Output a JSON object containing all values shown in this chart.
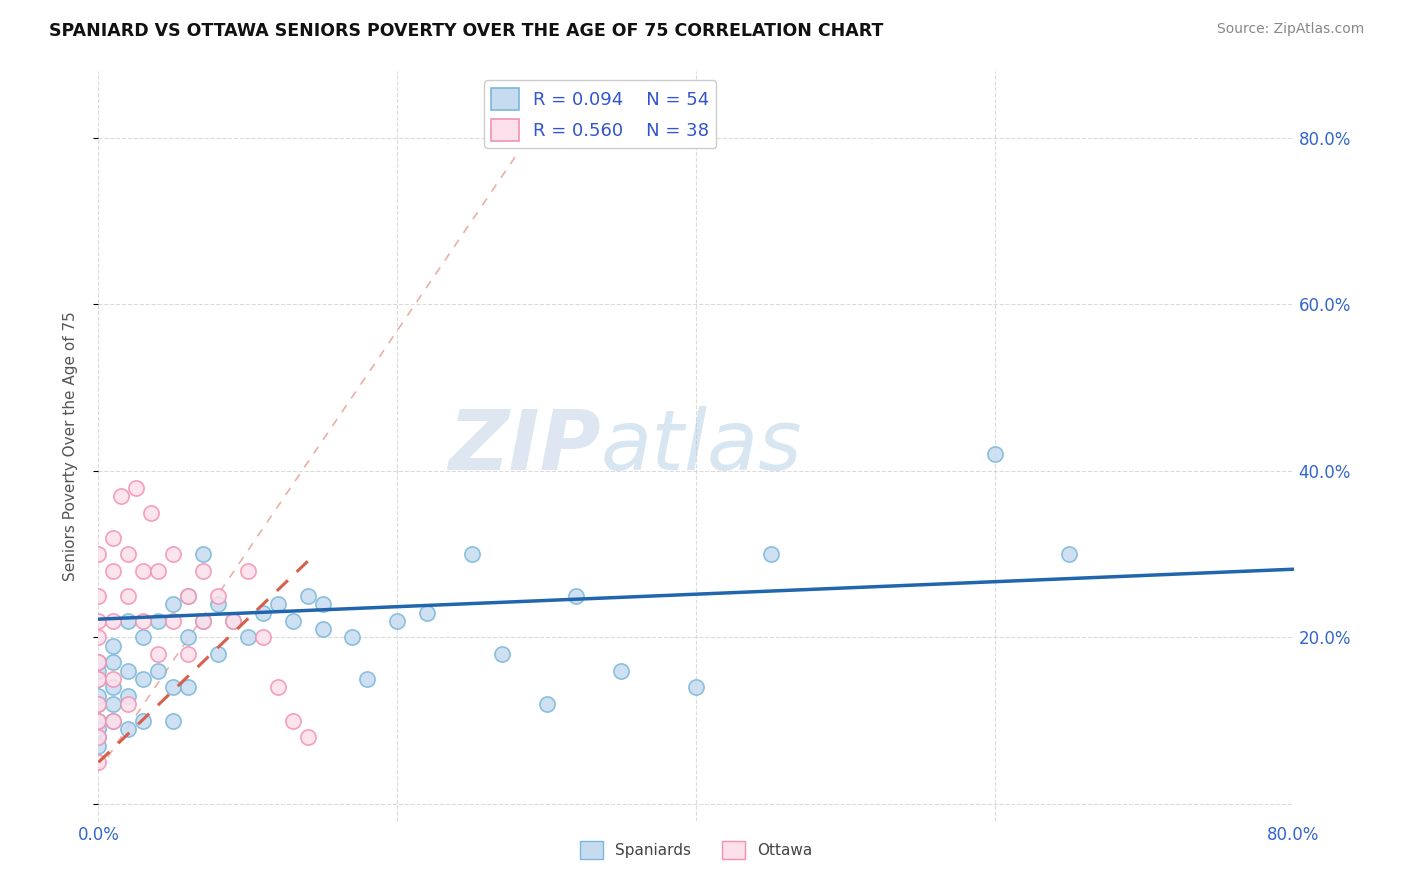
{
  "title": "SPANIARD VS OTTAWA SENIORS POVERTY OVER THE AGE OF 75 CORRELATION CHART",
  "source": "Source: ZipAtlas.com",
  "xlabel_spaniards": "Spaniards",
  "xlabel_ottawa": "Ottawa",
  "ylabel": "Seniors Poverty Over the Age of 75",
  "xlim": [
    0.0,
    0.8
  ],
  "ylim": [
    -0.02,
    0.88
  ],
  "x_ticks": [
    0.0,
    0.2,
    0.4,
    0.6,
    0.8
  ],
  "x_tick_labels": [
    "0.0%",
    "",
    "",
    "",
    "80.0%"
  ],
  "y_ticks": [
    0.0,
    0.2,
    0.4,
    0.6,
    0.8
  ],
  "y_tick_labels_right": [
    "",
    "20.0%",
    "40.0%",
    "60.0%",
    "80.0%"
  ],
  "r_spaniards": 0.094,
  "n_spaniards": 54,
  "r_ottawa": 0.56,
  "n_ottawa": 38,
  "spaniards_color": "#7ab8d9",
  "ottawa_color": "#f490b0",
  "spaniards_fill": "#c6dbef",
  "ottawa_fill": "#fce0ec",
  "trend_spaniards_color": "#2166ac",
  "trend_ottawa_color": "#d6604d",
  "watermark_zip": "ZIP",
  "watermark_atlas": "atlas",
  "spaniards_x": [
    0.0,
    0.0,
    0.0,
    0.0,
    0.0,
    0.0,
    0.0,
    0.0,
    0.0,
    0.01,
    0.01,
    0.01,
    0.01,
    0.01,
    0.02,
    0.02,
    0.02,
    0.02,
    0.03,
    0.03,
    0.03,
    0.04,
    0.04,
    0.05,
    0.05,
    0.05,
    0.06,
    0.06,
    0.06,
    0.07,
    0.07,
    0.08,
    0.08,
    0.09,
    0.1,
    0.11,
    0.12,
    0.13,
    0.14,
    0.15,
    0.15,
    0.17,
    0.18,
    0.2,
    0.22,
    0.25,
    0.27,
    0.3,
    0.32,
    0.35,
    0.4,
    0.45,
    0.6,
    0.65
  ],
  "spaniards_y": [
    0.08,
    0.1,
    0.12,
    0.13,
    0.15,
    0.16,
    0.17,
    0.09,
    0.07,
    0.12,
    0.14,
    0.17,
    0.19,
    0.1,
    0.13,
    0.16,
    0.22,
    0.09,
    0.15,
    0.2,
    0.1,
    0.16,
    0.22,
    0.14,
    0.24,
    0.1,
    0.2,
    0.25,
    0.14,
    0.22,
    0.3,
    0.24,
    0.18,
    0.22,
    0.2,
    0.23,
    0.24,
    0.22,
    0.25,
    0.24,
    0.21,
    0.2,
    0.15,
    0.22,
    0.23,
    0.3,
    0.18,
    0.12,
    0.25,
    0.16,
    0.14,
    0.3,
    0.42,
    0.3
  ],
  "ottawa_x": [
    0.0,
    0.0,
    0.0,
    0.0,
    0.0,
    0.0,
    0.0,
    0.0,
    0.0,
    0.0,
    0.01,
    0.01,
    0.01,
    0.01,
    0.01,
    0.02,
    0.02,
    0.02,
    0.03,
    0.03,
    0.04,
    0.04,
    0.05,
    0.05,
    0.06,
    0.06,
    0.07,
    0.07,
    0.08,
    0.09,
    0.1,
    0.11,
    0.12,
    0.13,
    0.14,
    0.015,
    0.025,
    0.035
  ],
  "ottawa_y": [
    0.08,
    0.1,
    0.12,
    0.15,
    0.17,
    0.2,
    0.22,
    0.25,
    0.3,
    0.05,
    0.15,
    0.22,
    0.28,
    0.32,
    0.1,
    0.25,
    0.3,
    0.12,
    0.28,
    0.22,
    0.28,
    0.18,
    0.3,
    0.22,
    0.25,
    0.18,
    0.28,
    0.22,
    0.25,
    0.22,
    0.28,
    0.2,
    0.14,
    0.1,
    0.08,
    0.37,
    0.38,
    0.35
  ]
}
